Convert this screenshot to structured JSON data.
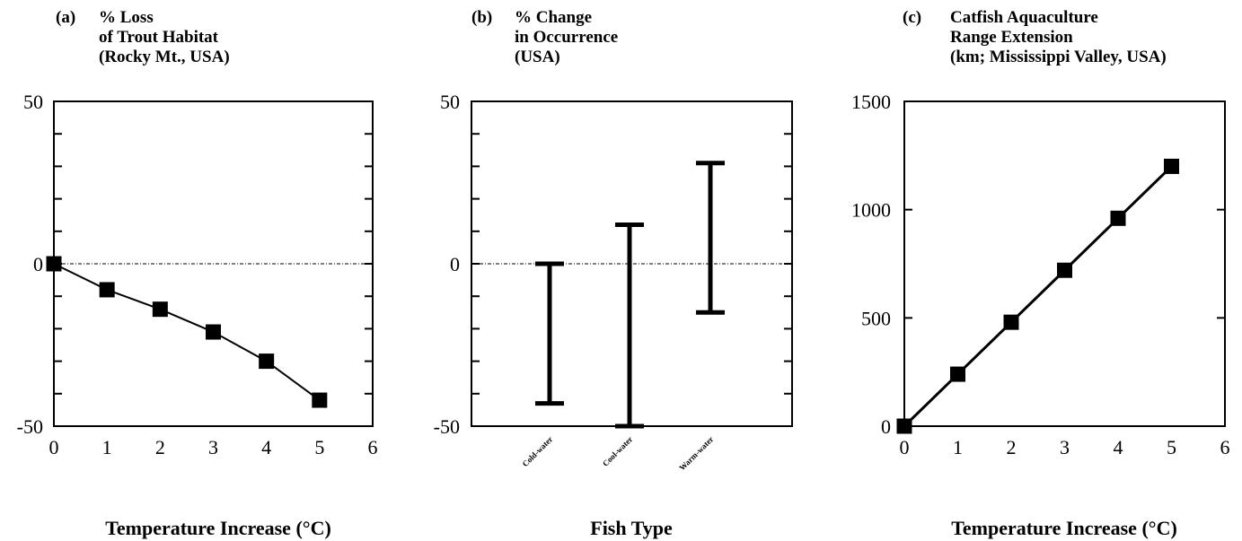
{
  "chart_data": [
    {
      "type": "line",
      "panel_label": "(a)",
      "title_lines": [
        "% Loss",
        "of Trout Habitat",
        "(Rocky Mt., USA)"
      ],
      "xlabel": "Temperature Increase (°C)",
      "ylabel": "",
      "xlim": [
        0,
        6
      ],
      "ylim": [
        -50,
        50
      ],
      "xticks": [
        "0",
        "1",
        "2",
        "3",
        "4",
        "5",
        "6"
      ],
      "yticks": [
        "50",
        "0",
        "-50"
      ],
      "reference_line": 0,
      "series": [
        {
          "x": [
            0,
            1,
            2,
            3,
            4,
            5
          ],
          "y": [
            0,
            -8,
            -14,
            -21,
            -30,
            -42
          ]
        }
      ]
    },
    {
      "type": "range",
      "panel_label": "(b)",
      "title_lines": [
        "% Change",
        "in Occurrence",
        "(USA)"
      ],
      "xlabel": "Fish Type",
      "ylabel": "",
      "ylim": [
        -50,
        50
      ],
      "yticks": [
        "50",
        "0",
        "-50"
      ],
      "reference_line": 0,
      "categories": [
        "Cold-water",
        "Cool-water",
        "Warm-water"
      ],
      "ranges": [
        {
          "low": -43,
          "high": 0
        },
        {
          "low": -50,
          "high": 12
        },
        {
          "low": -15,
          "high": 31
        }
      ]
    },
    {
      "type": "line",
      "panel_label": "(c)",
      "title_lines": [
        "Catfish Aquaculture",
        "Range Extension",
        "(km; Mississippi Valley, USA)"
      ],
      "xlabel": "Temperature Increase (°C)",
      "ylabel": "",
      "xlim": [
        0,
        6
      ],
      "ylim": [
        0,
        1500
      ],
      "xticks": [
        "0",
        "1",
        "2",
        "3",
        "4",
        "5",
        "6"
      ],
      "yticks": [
        "1500",
        "1000",
        "500",
        "0"
      ],
      "series": [
        {
          "x": [
            0,
            1,
            2,
            3,
            4,
            5
          ],
          "y": [
            0,
            240,
            480,
            720,
            960,
            1200
          ]
        }
      ]
    }
  ]
}
